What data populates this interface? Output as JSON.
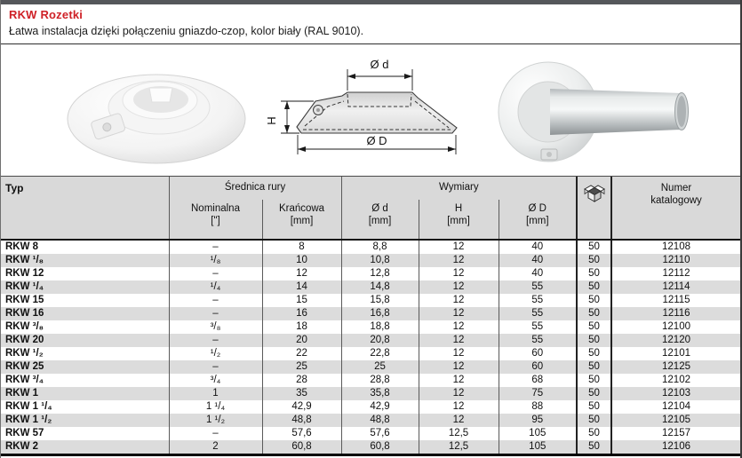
{
  "page": {
    "title": "RKW Rozetki",
    "subtitle": "Łatwa instalacja dzięki połączeniu gniazdo-czop, kolor biały (RAL 9010)."
  },
  "colors": {
    "accent_red": "#cf2127",
    "top_bar_gray": "#55575b",
    "header_gray": "#d9d9d9",
    "row_alt_gray": "#dcdcdc"
  },
  "icons": {
    "packaging": "package-box-icon"
  },
  "drawing": {
    "dim_top": "Ø d",
    "dim_left": "H",
    "dim_bottom": "Ø D"
  },
  "table": {
    "columns": {
      "typ": "Typ",
      "srednica_group": "Średnica rury",
      "nominalna": "Nominalna",
      "nominalna_unit": "[\"]",
      "krancowa": "Krańcowa",
      "krancowa_unit": "[mm]",
      "wymiary_group": "Wymiary",
      "od_label": "Ø d",
      "od_unit": "[mm]",
      "h_label": "H",
      "h_unit": "[mm]",
      "oD_label": "Ø D",
      "oD_unit": "[mm]",
      "numer_line1": "Numer",
      "numer_line2": "katalogowy"
    },
    "rows": [
      {
        "typ": "RKW 8",
        "nominalna": "–",
        "krancowa": "8",
        "od": "8,8",
        "h": "12",
        "oD": "40",
        "opak": "50",
        "numer": "12108"
      },
      {
        "typ": "RKW ¹/₈",
        "nominalna": "¹/₈",
        "krancowa": "10",
        "od": "10,8",
        "h": "12",
        "oD": "40",
        "opak": "50",
        "numer": "12110"
      },
      {
        "typ": "RKW 12",
        "nominalna": "–",
        "krancowa": "12",
        "od": "12,8",
        "h": "12",
        "oD": "40",
        "opak": "50",
        "numer": "12112"
      },
      {
        "typ": "RKW ¹/₄",
        "nominalna": "¹/₄",
        "krancowa": "14",
        "od": "14,8",
        "h": "12",
        "oD": "55",
        "opak": "50",
        "numer": "12114"
      },
      {
        "typ": "RKW 15",
        "nominalna": "–",
        "krancowa": "15",
        "od": "15,8",
        "h": "12",
        "oD": "55",
        "opak": "50",
        "numer": "12115"
      },
      {
        "typ": "RKW 16",
        "nominalna": "–",
        "krancowa": "16",
        "od": "16,8",
        "h": "12",
        "oD": "55",
        "opak": "50",
        "numer": "12116"
      },
      {
        "typ": "RKW ³/₈",
        "nominalna": "³/₈",
        "krancowa": "18",
        "od": "18,8",
        "h": "12",
        "oD": "55",
        "opak": "50",
        "numer": "12100"
      },
      {
        "typ": "RKW 20",
        "nominalna": "–",
        "krancowa": "20",
        "od": "20,8",
        "h": "12",
        "oD": "55",
        "opak": "50",
        "numer": "12120"
      },
      {
        "typ": "RKW ¹/₂",
        "nominalna": "¹/₂",
        "krancowa": "22",
        "od": "22,8",
        "h": "12",
        "oD": "60",
        "opak": "50",
        "numer": "12101"
      },
      {
        "typ": "RKW 25",
        "nominalna": "–",
        "krancowa": "25",
        "od": "25",
        "h": "12",
        "oD": "60",
        "opak": "50",
        "numer": "12125"
      },
      {
        "typ": "RKW ³/₄",
        "nominalna": "³/₄",
        "krancowa": "28",
        "od": "28,8",
        "h": "12",
        "oD": "68",
        "opak": "50",
        "numer": "12102"
      },
      {
        "typ": "RKW 1",
        "nominalna": "1",
        "krancowa": "35",
        "od": "35,8",
        "h": "12",
        "oD": "75",
        "opak": "50",
        "numer": "12103"
      },
      {
        "typ": "RKW 1 ¹/₄",
        "nominalna": "1 ¹/₄",
        "krancowa": "42,9",
        "od": "42,9",
        "h": "12",
        "oD": "88",
        "opak": "50",
        "numer": "12104"
      },
      {
        "typ": "RKW 1 ¹/₂",
        "nominalna": "1 ¹/₂",
        "krancowa": "48,8",
        "od": "48,8",
        "h": "12",
        "oD": "95",
        "opak": "50",
        "numer": "12105"
      },
      {
        "typ": "RKW 57",
        "nominalna": "–",
        "krancowa": "57,6",
        "od": "57,6",
        "h": "12,5",
        "oD": "105",
        "opak": "50",
        "numer": "12157"
      },
      {
        "typ": "RKW 2",
        "nominalna": "2",
        "krancowa": "60,8",
        "od": "60,8",
        "h": "12,5",
        "oD": "105",
        "opak": "50",
        "numer": "12106"
      }
    ]
  }
}
